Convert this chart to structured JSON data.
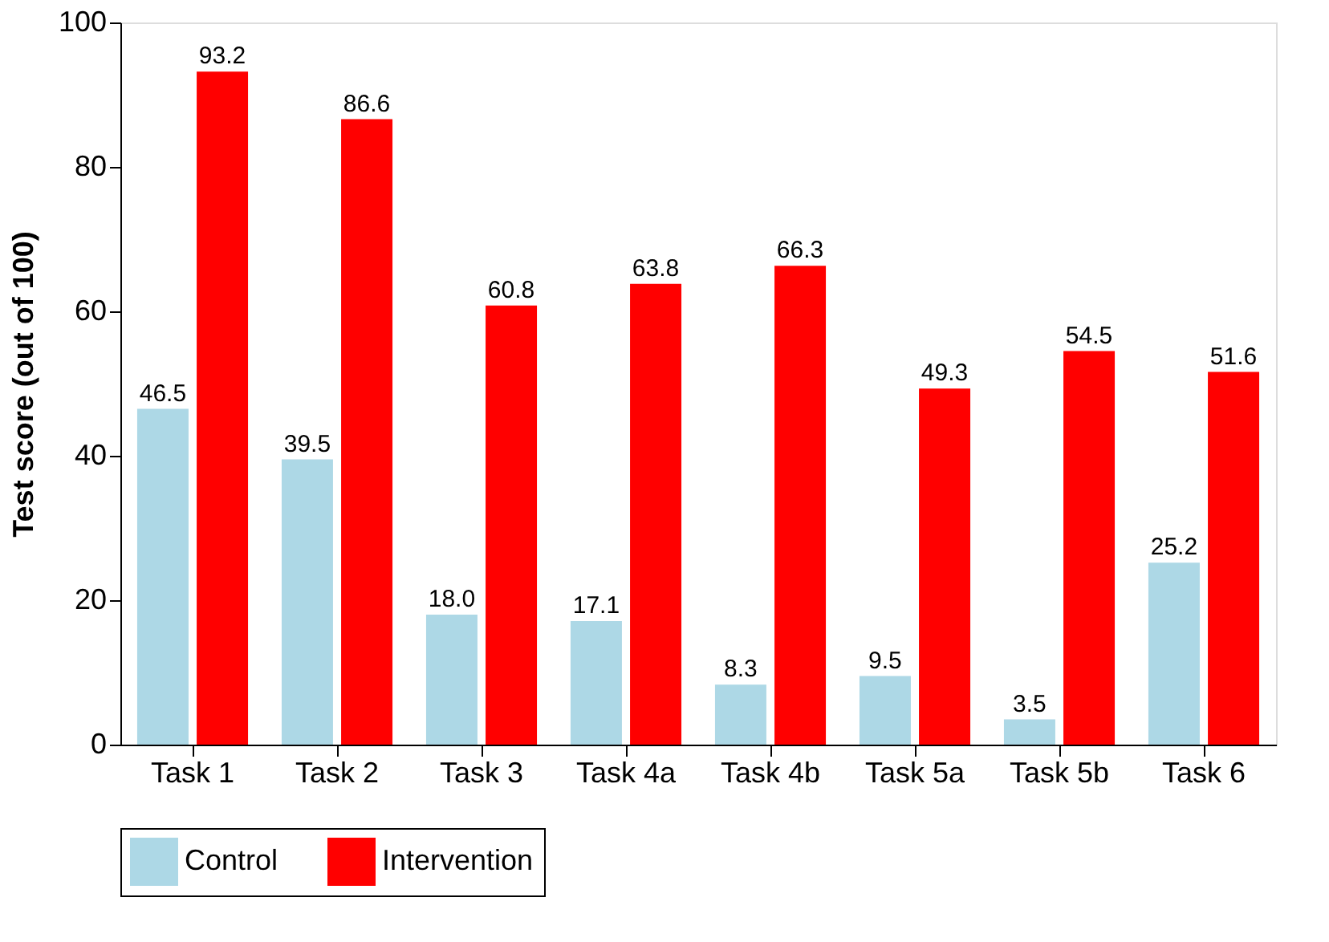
{
  "chart_data": {
    "type": "bar",
    "ylabel": "Test score (out of 100)",
    "categories": [
      "Task 1",
      "Task 2",
      "Task 3",
      "Task 4a",
      "Task 4b",
      "Task 5a",
      "Task 5b",
      "Task 6"
    ],
    "series": [
      {
        "name": "Control",
        "color": "#add8e6",
        "values": [
          46.5,
          39.5,
          18.0,
          17.1,
          8.3,
          9.5,
          3.5,
          25.2
        ],
        "value_labels": [
          "46.5",
          "39.5",
          "18.0",
          "17.1",
          "8.3",
          "9.5",
          "3.5",
          "25.2"
        ]
      },
      {
        "name": "Intervention",
        "color": "#ff0000",
        "values": [
          93.2,
          86.6,
          60.8,
          63.8,
          66.3,
          49.3,
          54.5,
          51.6
        ],
        "value_labels": [
          "93.2",
          "86.6",
          "60.8",
          "63.8",
          "66.3",
          "49.3",
          "54.5",
          "51.6"
        ]
      }
    ],
    "ylim": [
      0,
      100
    ],
    "yticks": [
      0,
      20,
      40,
      60,
      80,
      100
    ],
    "grid": false,
    "legend": "bottom"
  }
}
